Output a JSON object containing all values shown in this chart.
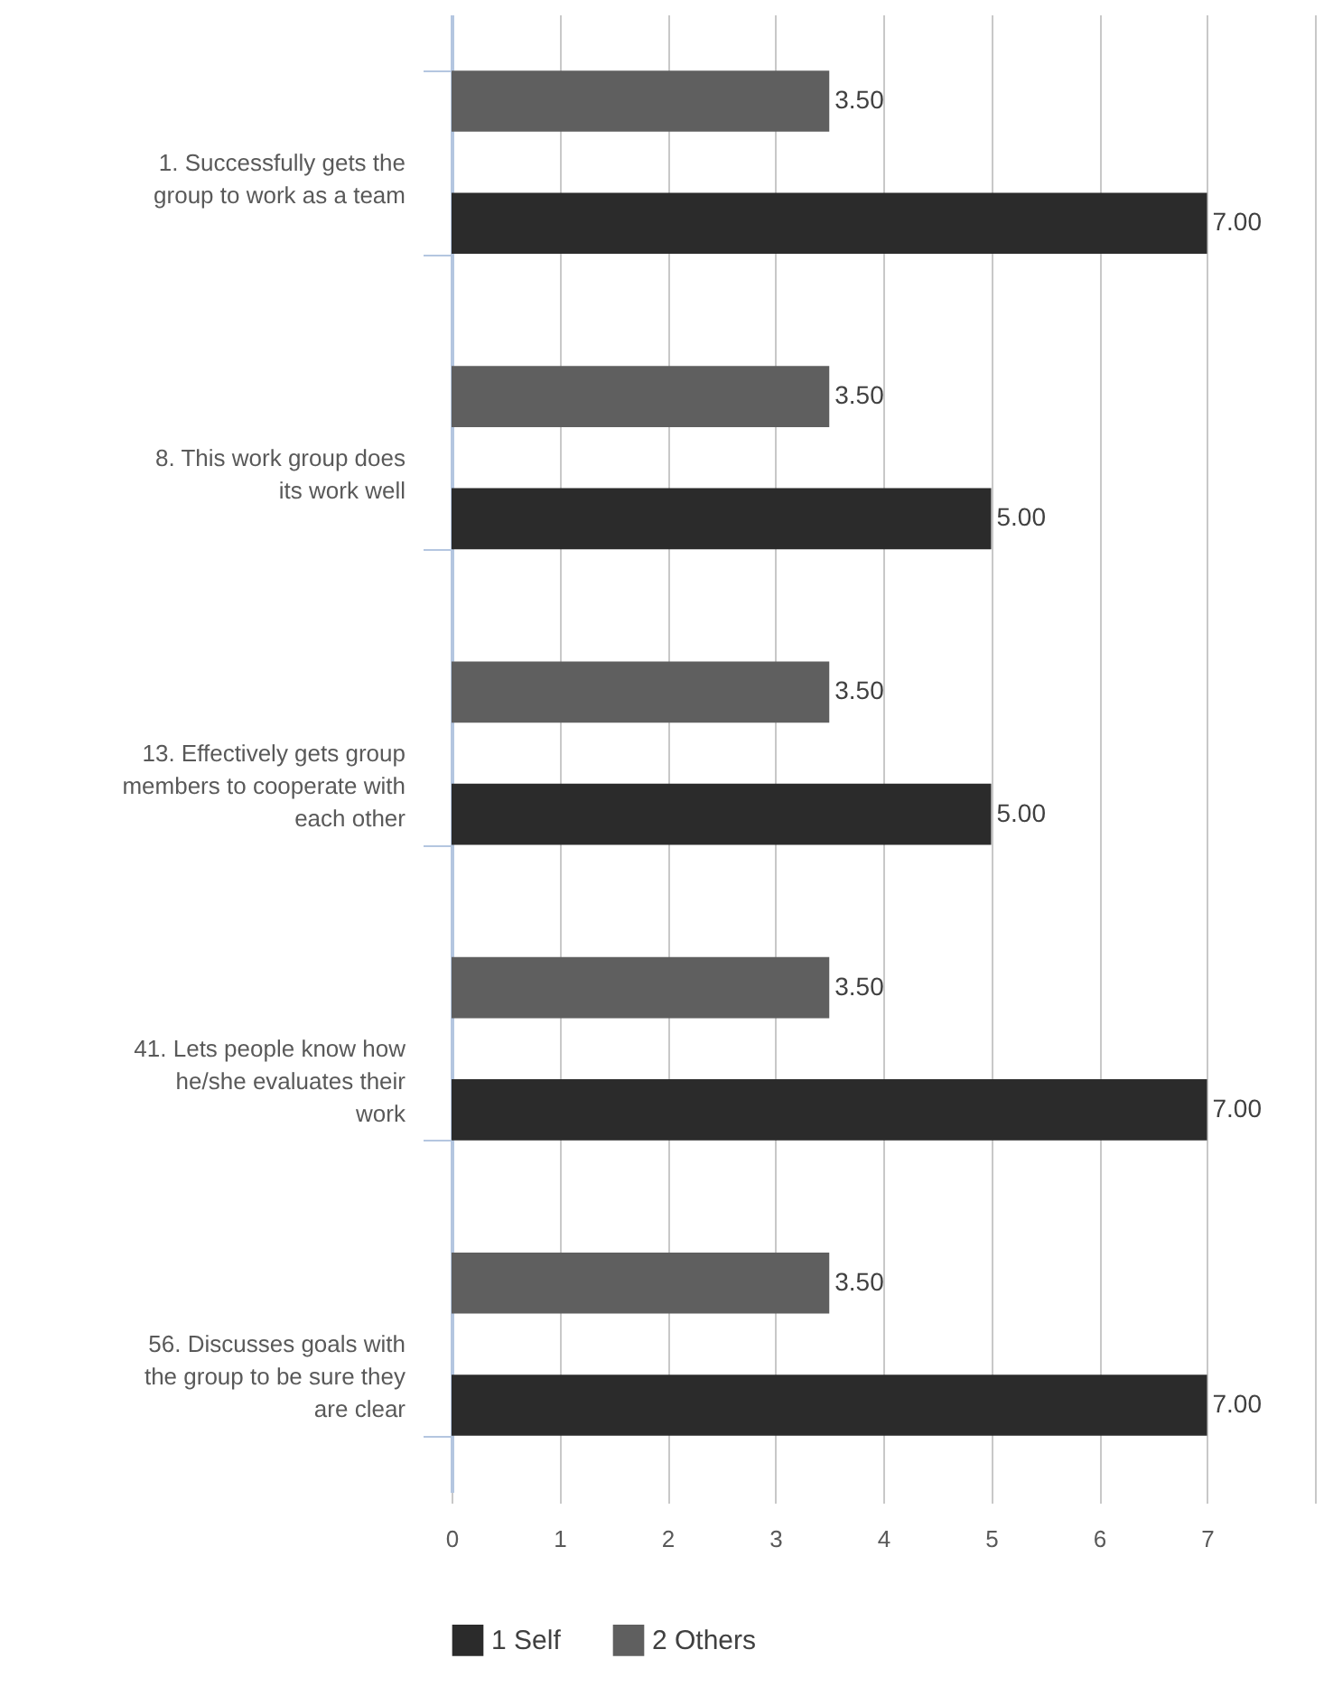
{
  "chart_data": {
    "type": "bar",
    "orientation": "horizontal",
    "categories": [
      "1. Successfully gets the group to work as a team",
      "8. This work group does its work well",
      "13. Effectively gets group members to cooperate with each other",
      "41. Lets people know how he/she evaluates their work",
      "56. Discusses goals with the group to be sure they are clear"
    ],
    "series": [
      {
        "name": "1 Self",
        "color": "#2b2b2b",
        "values": [
          7,
          5,
          5,
          7,
          7
        ],
        "value_labels": [
          "7.00",
          "5.00",
          "5.00",
          "7.00",
          "7.00"
        ]
      },
      {
        "name": "2 Others",
        "color": "#5f5f5f",
        "values": [
          3.5,
          3.5,
          3.5,
          3.5,
          3.5
        ],
        "value_labels": [
          "3.50",
          "3.50",
          "3.50",
          "3.50",
          "3.50"
        ]
      }
    ],
    "xlim": [
      0,
      8
    ],
    "xticks": [
      0,
      1,
      2,
      3,
      4,
      5,
      6,
      7,
      {
        "value": 8,
        "label": null
      }
    ],
    "grid": "x",
    "legend": "bottom"
  }
}
